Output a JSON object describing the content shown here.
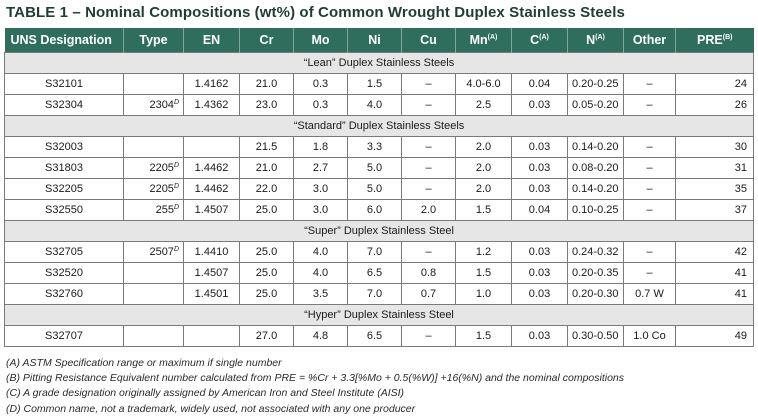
{
  "title": "TABLE 1 – Nominal Compositions (wt%) of Common Wrought Duplex Stainless Steels",
  "columns": [
    {
      "label": "UNS Designation",
      "sup": ""
    },
    {
      "label": "Type",
      "sup": ""
    },
    {
      "label": "EN",
      "sup": ""
    },
    {
      "label": "Cr",
      "sup": ""
    },
    {
      "label": "Mo",
      "sup": ""
    },
    {
      "label": "Ni",
      "sup": ""
    },
    {
      "label": "Cu",
      "sup": ""
    },
    {
      "label": "Mn",
      "sup": "(A)"
    },
    {
      "label": "C",
      "sup": "(A)"
    },
    {
      "label": "N",
      "sup": "(A)"
    },
    {
      "label": "Other",
      "sup": ""
    },
    {
      "label": "PRE",
      "sup": "(B)"
    }
  ],
  "sections": [
    {
      "heading": "“Lean” Duplex Stainless Steels",
      "rows": [
        {
          "uns": "S32101",
          "type": "",
          "type_sup": "",
          "en": "1.4162",
          "cr": "21.0",
          "mo": "0.3",
          "ni": "1.5",
          "cu": "–",
          "mn": "4.0-6.0",
          "c": "0.04",
          "n": "0.20-0.25",
          "other": "–",
          "pre": "24"
        },
        {
          "uns": "S32304",
          "type": "2304",
          "type_sup": "D",
          "en": "1.4362",
          "cr": "23.0",
          "mo": "0.3",
          "ni": "4.0",
          "cu": "–",
          "mn": "2.5",
          "c": "0.03",
          "n": "0.05-0.20",
          "other": "–",
          "pre": "26"
        }
      ]
    },
    {
      "heading": "“Standard” Duplex Stainless Steels",
      "rows": [
        {
          "uns": "S32003",
          "type": "",
          "type_sup": "",
          "en": "",
          "cr": "21.5",
          "mo": "1.8",
          "ni": "3.3",
          "cu": "–",
          "mn": "2.0",
          "c": "0.03",
          "n": "0.14-0.20",
          "other": "–",
          "pre": "30"
        },
        {
          "uns": "S31803",
          "type": "2205",
          "type_sup": "D",
          "en": "1.4462",
          "cr": "21.0",
          "mo": "2.7",
          "ni": "5.0",
          "cu": "–",
          "mn": "2.0",
          "c": "0.03",
          "n": "0.08-0.20",
          "other": "–",
          "pre": "31"
        },
        {
          "uns": "S32205",
          "type": "2205",
          "type_sup": "D",
          "en": "1.4462",
          "cr": "22.0",
          "mo": "3.0",
          "ni": "5.0",
          "cu": "–",
          "mn": "2.0",
          "c": "0.03",
          "n": "0.14-0.20",
          "other": "–",
          "pre": "35"
        },
        {
          "uns": "S32550",
          "type": "255",
          "type_sup": "D",
          "en": "1.4507",
          "cr": "25.0",
          "mo": "3.0",
          "ni": "6.0",
          "cu": "2.0",
          "mn": "1.5",
          "c": "0.04",
          "n": "0.10-0.25",
          "other": "–",
          "pre": "37"
        }
      ]
    },
    {
      "heading": "“Super” Duplex Stainless Steel",
      "rows": [
        {
          "uns": "S32705",
          "type": "2507",
          "type_sup": "D",
          "en": "1.4410",
          "cr": "25.0",
          "mo": "4.0",
          "ni": "7.0",
          "cu": "–",
          "mn": "1.2",
          "c": "0.03",
          "n": "0.24-0.32",
          "other": "–",
          "pre": "42"
        },
        {
          "uns": "S32520",
          "type": "",
          "type_sup": "",
          "en": "1.4507",
          "cr": "25.0",
          "mo": "4.0",
          "ni": "6.5",
          "cu": "0.8",
          "mn": "1.5",
          "c": "0.03",
          "n": "0.20-0.35",
          "other": "–",
          "pre": "41"
        },
        {
          "uns": "S32760",
          "type": "",
          "type_sup": "",
          "en": "1.4501",
          "cr": "25.0",
          "mo": "3.5",
          "ni": "7.0",
          "cu": "0.7",
          "mn": "1.0",
          "c": "0.03",
          "n": "0.20-0.30",
          "other": "0.7 W",
          "pre": "41"
        }
      ]
    },
    {
      "heading": "“Hyper” Duplex Stainless Steel",
      "rows": [
        {
          "uns": "S32707",
          "type": "",
          "type_sup": "",
          "en": "",
          "cr": "27.0",
          "mo": "4.8",
          "ni": "6.5",
          "cu": "–",
          "mn": "1.5",
          "c": "0.03",
          "n": "0.30-0.50",
          "other": "1.0 Co",
          "pre": "49"
        }
      ]
    }
  ],
  "notes": [
    "(A) ASTM Specification range or maximum if single number",
    "(B) Pitting Resistance Equivalent number calculated from PRE = %Cr + 3.3[%Mo + 0.5(%W)] +16(%N) and the nominal compositions",
    "(C) A grade designation originally assigned by American Iron and Steel Institute (AISI)",
    "(D) Common name, not a trademark, widely used, not associated with any one producer"
  ],
  "colors": {
    "header_bg": "#2f6e5c",
    "title": "#1f3d36",
    "section_bg": "#e6e6e6"
  }
}
